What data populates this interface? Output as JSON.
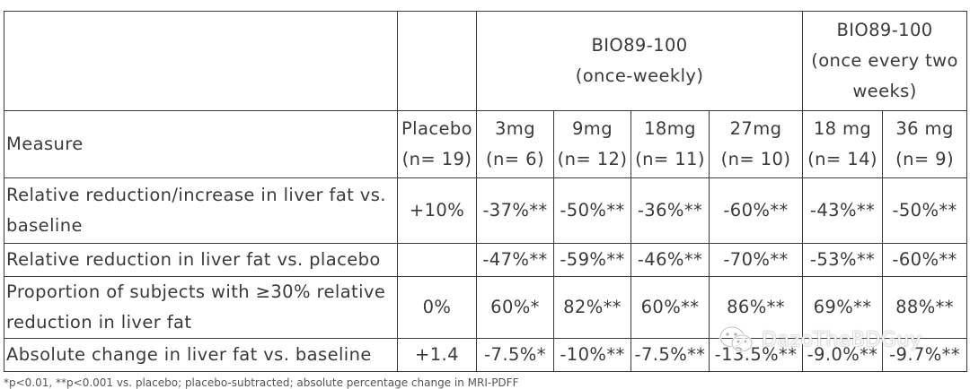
{
  "table": {
    "group_header": {
      "weekly": [
        "BIO89-100",
        "(once-weekly)"
      ],
      "biweekly": [
        "BIO89-100",
        "(once every two",
        "weeks)"
      ]
    },
    "measure_header": "Measure",
    "columns": [
      {
        "dose": "Placebo",
        "n": "(n= 19)"
      },
      {
        "dose": "3mg",
        "n": "(n= 6)"
      },
      {
        "dose": "9mg",
        "n": "(n= 12)"
      },
      {
        "dose": "18mg",
        "n": "(n= 11)"
      },
      {
        "dose": "27mg",
        "n": "(n= 10)"
      },
      {
        "dose": "18 mg",
        "n": "(n= 14)"
      },
      {
        "dose": "36 mg",
        "n": "(n= 9)"
      }
    ],
    "rows": [
      {
        "measure": "Relative reduction/increase in liver fat vs. baseline",
        "values": [
          "+10%",
          "-37%**",
          "-50%**",
          "-36%**",
          "-60%**",
          "-43%**",
          "-50%**"
        ]
      },
      {
        "measure": "Relative reduction in liver fat vs. placebo",
        "values": [
          "",
          "-47%**",
          "-59%**",
          "-46%**",
          "-70%**",
          "-53%**",
          "-60%**"
        ]
      },
      {
        "measure": "Proportion of subjects with ≥30% relative reduction in liver fat",
        "values": [
          "0%",
          "60%*",
          "82%**",
          "60%**",
          "86%**",
          "69%**",
          "88%**"
        ]
      },
      {
        "measure": "Absolute change in liver fat vs. baseline",
        "values": [
          "+1.4",
          "-7.5%*",
          "-10%**",
          "-7.5%**",
          "-13.5%**",
          "-9.0%**",
          "-9.7%**"
        ]
      }
    ]
  },
  "footnote": "*p<0.01, **p<0.001 vs. placebo; placebo-subtracted; absolute percentage change in MRI-PDFF",
  "watermark": {
    "text": "DazoTheBDGuy",
    "icon": "wechat-icon"
  }
}
